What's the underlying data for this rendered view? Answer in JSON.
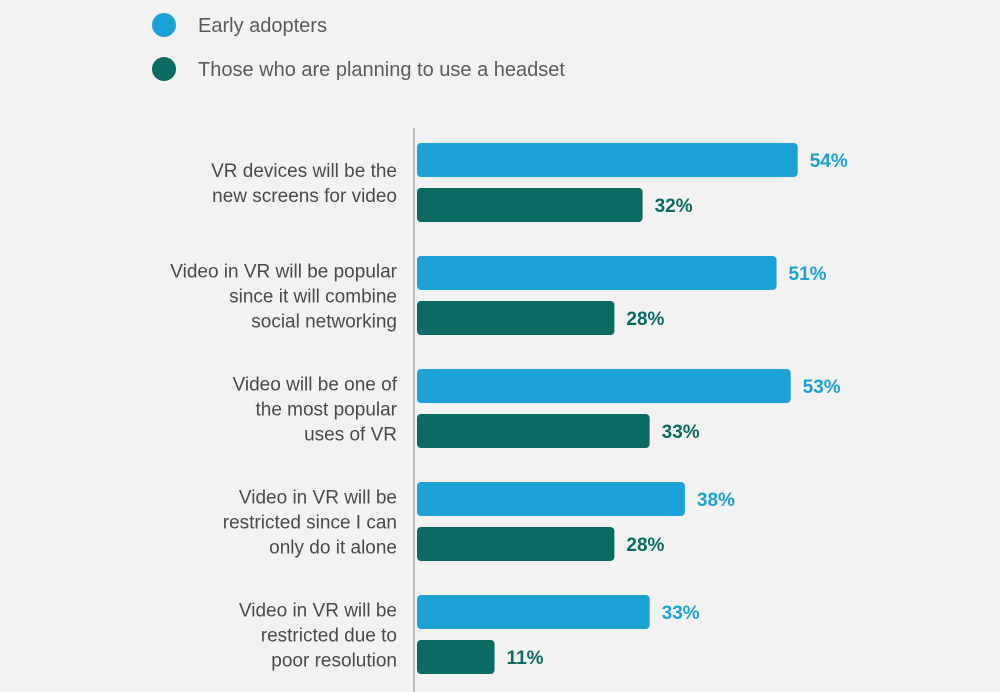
{
  "chart_data": {
    "type": "bar",
    "orientation": "horizontal",
    "title": "",
    "xlabel": "",
    "ylabel": "",
    "xlim": [
      0,
      60
    ],
    "grid": false,
    "legend_position": "top-left",
    "value_suffix": "%",
    "categories": [
      [
        "VR devices will be the",
        "new screens for video"
      ],
      [
        "Video in VR will be popular",
        "since it will combine",
        "social networking"
      ],
      [
        "Video will be one of",
        "the most popular",
        "uses of VR"
      ],
      [
        "Video in VR will be",
        "restricted since I can",
        "only do it alone"
      ],
      [
        "Video in VR will be",
        "restricted due to",
        "poor resolution"
      ]
    ],
    "series": [
      {
        "name": "Early adopters",
        "color": "#1ba1d6",
        "values": [
          54,
          51,
          53,
          38,
          33
        ]
      },
      {
        "name": "Those who are planning to use a headset",
        "color": "#0b6b63",
        "values": [
          32,
          28,
          33,
          28,
          11
        ]
      }
    ]
  }
}
